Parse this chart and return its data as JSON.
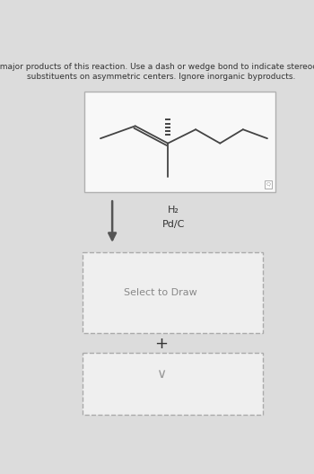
{
  "title_text": "Draw two major products of this reaction. Use a dash or wedge bond to indicate stereochemistry of\nsubstituents on asymmetric centers. Ignore inorganic byproducts.",
  "bg_color": "#dcdcdc",
  "molecule_box_color": "#f8f8f8",
  "molecule_box_border": "#b0b0b0",
  "dashed_box_color": "#aaaaaa",
  "arrow_color": "#555555",
  "text_color": "#333333",
  "reagent1": "H₂",
  "reagent2": "Pd/C",
  "select_text": "Select to Draw",
  "plus_text": "+",
  "small_icon_color": "#999999",
  "mol_lw": 1.3,
  "mol_color": "#444444"
}
